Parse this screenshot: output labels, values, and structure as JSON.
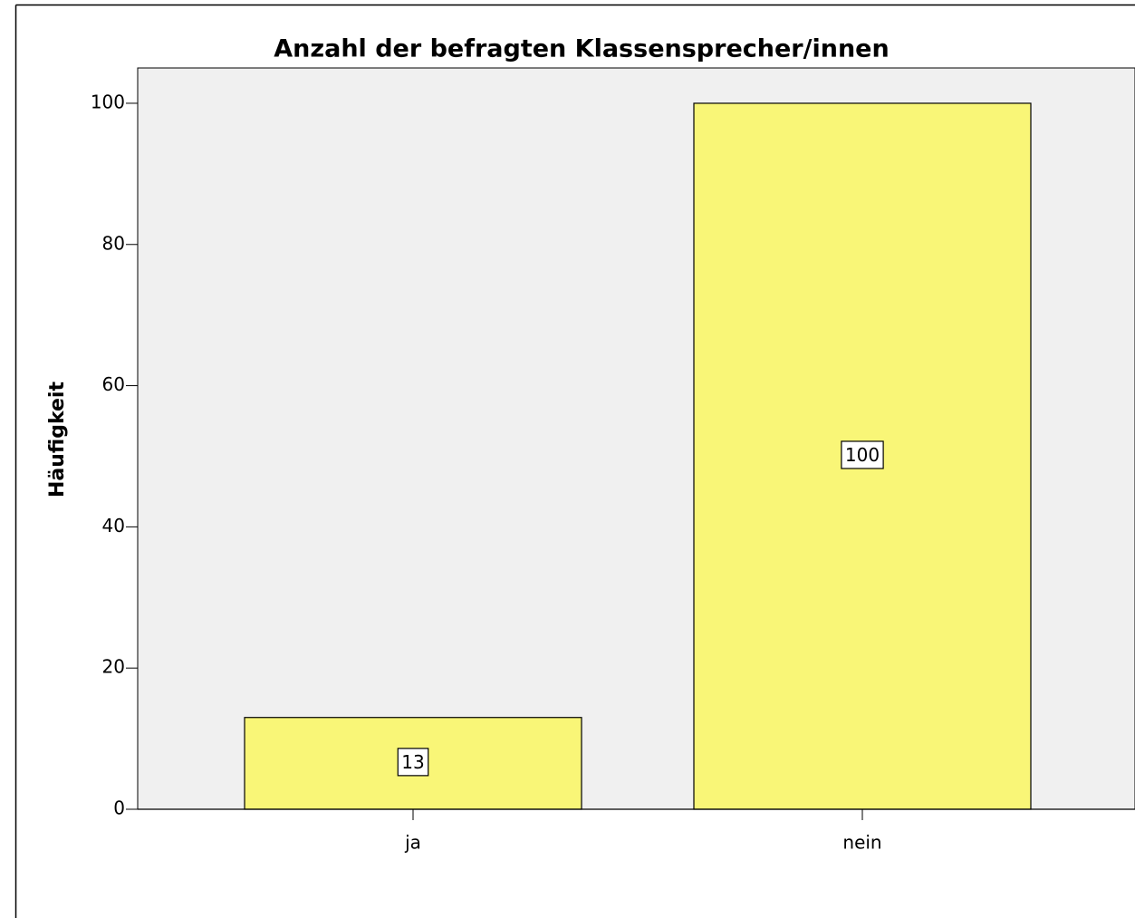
{
  "chart_data": {
    "type": "bar",
    "title": "Anzahl der befragten Klassensprecher/innen",
    "y_label": "Häufigkeit",
    "categories": [
      "ja",
      "nein"
    ],
    "values": [
      13,
      100
    ],
    "color": "#f9f677",
    "ylim": [
      0,
      105
    ],
    "yticks": [
      0,
      20,
      40,
      60,
      80,
      100
    ]
  }
}
